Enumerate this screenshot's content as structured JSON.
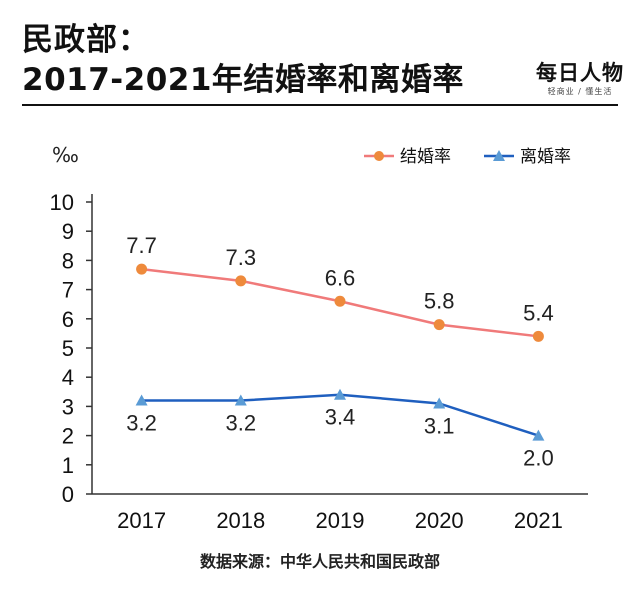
{
  "header": {
    "title_line1": "民政部：",
    "title_line2": "2017-2021年结婚率和离婚率"
  },
  "logo": {
    "main": "每日人物",
    "sub": "轻商业 / 懂生活"
  },
  "source_text": "数据来源：中华人民共和国民政部",
  "colors": {
    "marriage": "#f07a7a",
    "marriage_marker": "#ee8a3c",
    "divorce": "#1f5fbf",
    "divorce_marker": "#5a9bd5",
    "axis": "#333333"
  },
  "chart_data": {
    "type": "line",
    "unit_label": "‰",
    "categories": [
      "2017",
      "2018",
      "2019",
      "2020",
      "2021"
    ],
    "ylim": [
      0,
      10
    ],
    "yticks": [
      "0",
      "1",
      "2",
      "3",
      "4",
      "5",
      "6",
      "7",
      "8",
      "9",
      "10"
    ],
    "legend_position": "top-right",
    "series": [
      {
        "name": "结婚率",
        "values": [
          7.7,
          7.3,
          6.6,
          5.8,
          5.4
        ],
        "labels": [
          "7.7",
          "7.3",
          "6.6",
          "5.8",
          "5.4"
        ],
        "marker": "circle"
      },
      {
        "name": "离婚率",
        "values": [
          3.2,
          3.2,
          3.4,
          3.1,
          2.0
        ],
        "labels": [
          "3.2",
          "3.2",
          "3.4",
          "3.1",
          "2.0"
        ],
        "marker": "triangle"
      }
    ]
  }
}
